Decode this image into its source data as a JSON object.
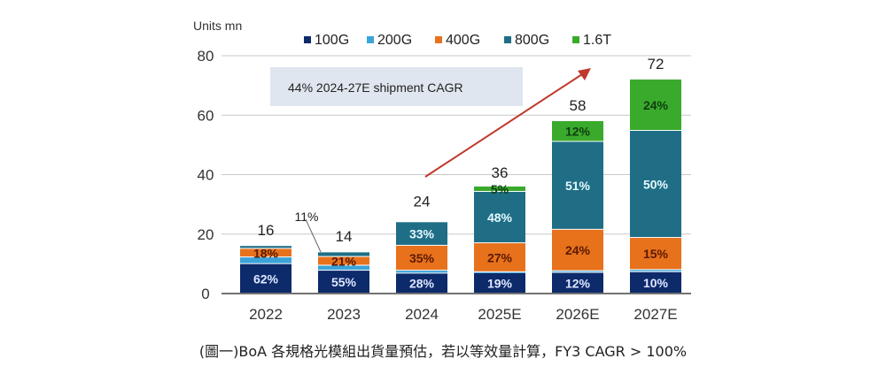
{
  "chart_data": {
    "type": "bar",
    "stacked": true,
    "ylabel": "Units mn",
    "ylim": [
      0,
      80
    ],
    "yticks": [
      0,
      20,
      40,
      60,
      80
    ],
    "categories": [
      "2022",
      "2023",
      "2024",
      "2025E",
      "2026E",
      "2027E"
    ],
    "totals": [
      16,
      14,
      24,
      36,
      58,
      72
    ],
    "series": [
      {
        "name": "100G",
        "color": "#0d2a6b",
        "shares": [
          62,
          55,
          28,
          19,
          12,
          10
        ],
        "labels": [
          "62%",
          "55%",
          "28%",
          "19%",
          "12%",
          "10%"
        ]
      },
      {
        "name": "200G",
        "color": "#3ba3d9",
        "shares": [
          14,
          12,
          4,
          1,
          1,
          1
        ],
        "labels": [
          "",
          "",
          "",
          "",
          "",
          ""
        ]
      },
      {
        "name": "400G",
        "color": "#e8711c",
        "shares": [
          18,
          21,
          35,
          27,
          24,
          15
        ],
        "labels": [
          "18%",
          "21%",
          "35%",
          "27%",
          "24%",
          "15%"
        ]
      },
      {
        "name": "800G",
        "color": "#1f6e86",
        "shares": [
          6,
          11,
          33,
          48,
          51,
          50
        ],
        "labels": [
          "",
          "11%",
          "33%",
          "48%",
          "51%",
          "50%"
        ]
      },
      {
        "name": "1.6T",
        "color": "#3aaa2c",
        "shares": [
          0,
          0,
          0,
          5,
          12,
          24
        ],
        "labels": [
          "",
          "",
          "",
          "5%",
          "12%",
          "24%"
        ]
      }
    ],
    "annotation": "44% 2024-27E shipment CAGR",
    "legend_position": "top",
    "grid": true
  },
  "caption": "(圖一)BoA 各規格光模組出貨量預估，若以等效量計算，FY3 CAGR > 100%"
}
